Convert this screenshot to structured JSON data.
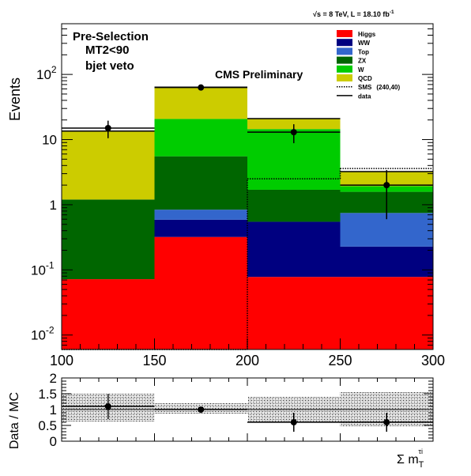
{
  "header": {
    "energy_label": "√s = 8 TeV, L = 18.10 fb",
    "lumi_exponent": "-1"
  },
  "annotations": {
    "selection": "Pre-Selection",
    "cut1": "MT2<90",
    "cut2": "bjet veto",
    "cms": "CMS Preliminary"
  },
  "chart_data": [
    {
      "type": "bar",
      "stacked": true,
      "ylabel": "Events",
      "yscale": "log",
      "ylim": [
        0.006,
        600
      ],
      "xlim": [
        100,
        300
      ],
      "bin_edges": [
        100,
        150,
        200,
        250,
        300
      ],
      "x_ticks": [
        "100",
        "150",
        "200",
        "250",
        "300"
      ],
      "y_ticks": [
        {
          "value": 0.01,
          "base": "10",
          "exp": "-2"
        },
        {
          "value": 0.1,
          "base": "10",
          "exp": "-1"
        },
        {
          "value": 1,
          "base": "1",
          "exp": ""
        },
        {
          "value": 10,
          "base": "10",
          "exp": ""
        },
        {
          "value": 100,
          "base": "10",
          "exp": "2"
        }
      ],
      "series": [
        {
          "name": "Higgs",
          "color": "#ff0000",
          "values": [
            0.072,
            0.32,
            0.078,
            0.078
          ]
        },
        {
          "name": "WW",
          "color": "#000080",
          "values": [
            0.0,
            0.27,
            0.47,
            0.15
          ]
        },
        {
          "name": "Top",
          "color": "#3366cc",
          "values": [
            0.0,
            0.25,
            0.0,
            0.52
          ]
        },
        {
          "name": "ZX",
          "color": "#006600",
          "values": [
            1.13,
            4.7,
            1.15,
            0.83
          ]
        },
        {
          "name": "W",
          "color": "#00cc00",
          "values": [
            0.0,
            15.2,
            12.8,
            0.35
          ]
        },
        {
          "name": "QCD",
          "color": "#cccc00",
          "values": [
            12.3,
            43.0,
            6.5,
            1.3
          ]
        }
      ],
      "sms": {
        "name": "SMS",
        "label_extra": "(240,40)",
        "values": [
          0.0,
          0.0,
          2.5,
          3.6
        ]
      },
      "data": {
        "name": "data",
        "x": [
          125,
          175,
          225,
          275
        ],
        "y": [
          15,
          63,
          13,
          2
        ],
        "err_lo": [
          4.5,
          6,
          4.2,
          1.4
        ],
        "err_hi": [
          4.5,
          6,
          4.2,
          1.4
        ]
      }
    },
    {
      "type": "scatter",
      "ylabel": "Data / MC",
      "ylim": [
        0,
        2
      ],
      "xlim": [
        100,
        300
      ],
      "xlabel_main": "Σ m",
      "xlabel_sub": "T",
      "xlabel_sup": "τi",
      "y_ticks": [
        "0",
        "0.5",
        "1",
        "1.5",
        "2"
      ],
      "ratio": {
        "x": [
          125,
          175,
          225,
          275
        ],
        "y": [
          1.1,
          1.0,
          0.6,
          0.6
        ],
        "err": [
          0.4,
          0.1,
          0.3,
          0.3
        ]
      },
      "band": {
        "lo": [
          0.6,
          0.85,
          0.6,
          0.45
        ],
        "hi": [
          1.5,
          1.2,
          1.42,
          1.55
        ]
      }
    }
  ]
}
